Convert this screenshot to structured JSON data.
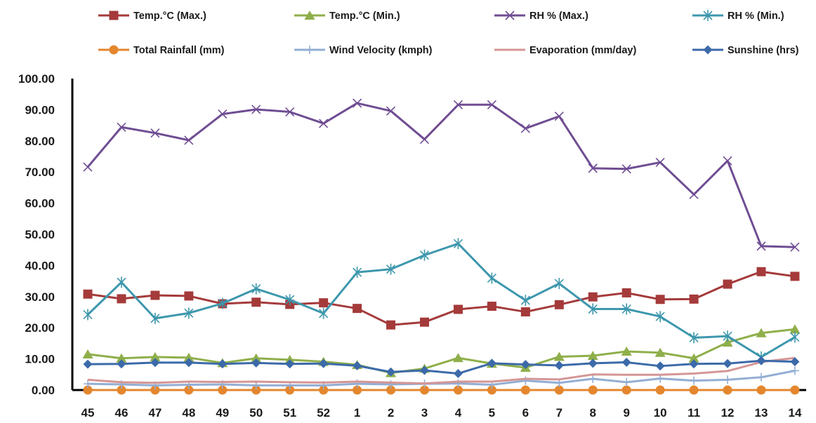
{
  "chart_data": {
    "type": "line",
    "title": "",
    "xlabel": "",
    "ylabel": "",
    "ylim": [
      0,
      100
    ],
    "y_ticks": [
      "0.00",
      "10.00",
      "20.00",
      "30.00",
      "40.00",
      "50.00",
      "60.00",
      "70.00",
      "80.00",
      "90.00",
      "100.00"
    ],
    "categories": [
      "45",
      "46",
      "47",
      "48",
      "49",
      "50",
      "51",
      "52",
      "1",
      "2",
      "3",
      "4",
      "5",
      "6",
      "7",
      "8",
      "9",
      "10",
      "11",
      "12",
      "13",
      "14"
    ],
    "grid": false,
    "legend_position": "top",
    "series": [
      {
        "name": "Temp.°C (Max.)",
        "color": "#a53a3a",
        "marker": "square",
        "values": [
          30.8,
          29.3,
          30.4,
          30.2,
          27.7,
          28.2,
          27.5,
          28.0,
          26.2,
          20.9,
          21.8,
          25.9,
          26.9,
          25.1,
          27.4,
          29.9,
          31.2,
          29.1,
          29.2,
          34.0,
          38.0,
          36.5
        ]
      },
      {
        "name": "Temp.°C (Min.)",
        "color": "#8faf4a",
        "marker": "triangle",
        "values": [
          11.5,
          10.2,
          10.6,
          10.4,
          8.7,
          10.2,
          9.7,
          9.1,
          8.1,
          5.5,
          6.9,
          10.3,
          8.5,
          7.2,
          10.7,
          11.0,
          12.4,
          12.0,
          10.2,
          15.3,
          18.3,
          19.5
        ]
      },
      {
        "name": "RH % (Max.)",
        "color": "#6f4d93",
        "marker": "x",
        "values": [
          71.6,
          84.4,
          82.5,
          80.2,
          88.6,
          90.1,
          89.3,
          85.6,
          92.1,
          89.6,
          80.5,
          91.6,
          91.6,
          84.0,
          87.9,
          71.2,
          71.0,
          73.1,
          62.8,
          73.6,
          46.2,
          45.9
        ]
      },
      {
        "name": "RH % (Min.)",
        "color": "#3d97ad",
        "marker": "star",
        "values": [
          24.2,
          34.6,
          23.0,
          24.7,
          27.8,
          32.5,
          29.0,
          24.6,
          37.8,
          38.8,
          43.3,
          47.0,
          35.9,
          28.8,
          34.2,
          26.0,
          26.0,
          23.6,
          16.8,
          17.3,
          10.6,
          17.0
        ]
      },
      {
        "name": "Total Rainfall (mm)",
        "color": "#e4862e",
        "marker": "circle",
        "values": [
          0,
          0,
          0,
          0,
          0,
          0,
          0,
          0,
          0,
          0,
          0,
          0,
          0,
          0,
          0,
          0,
          0,
          0,
          0,
          0,
          0,
          0
        ]
      },
      {
        "name": "Wind Velocity (kmph)",
        "color": "#93aed4",
        "marker": "plus",
        "values": [
          2.0,
          1.8,
          1.5,
          1.7,
          1.8,
          1.5,
          1.5,
          1.5,
          2.0,
          1.8,
          2.0,
          2.1,
          1.7,
          3.0,
          2.3,
          3.6,
          2.5,
          3.7,
          3.0,
          3.3,
          4.1,
          6.2
        ]
      },
      {
        "name": "Evaporation (mm/day)",
        "color": "#d59696",
        "marker": "none",
        "values": [
          3.3,
          2.5,
          2.3,
          2.7,
          2.6,
          2.7,
          2.5,
          2.4,
          2.7,
          2.4,
          2.1,
          2.7,
          2.7,
          3.6,
          3.4,
          5.0,
          4.9,
          4.9,
          5.3,
          6.1,
          9.0,
          10.3
        ]
      },
      {
        "name": "Sunshine (hrs)",
        "color": "#3c6aa9",
        "marker": "diamond",
        "values": [
          8.3,
          8.4,
          8.8,
          8.8,
          8.4,
          8.7,
          8.4,
          8.5,
          7.8,
          5.8,
          6.3,
          5.3,
          8.6,
          8.2,
          7.9,
          8.6,
          8.9,
          7.7,
          8.4,
          8.5,
          9.4,
          9.1
        ]
      }
    ]
  }
}
